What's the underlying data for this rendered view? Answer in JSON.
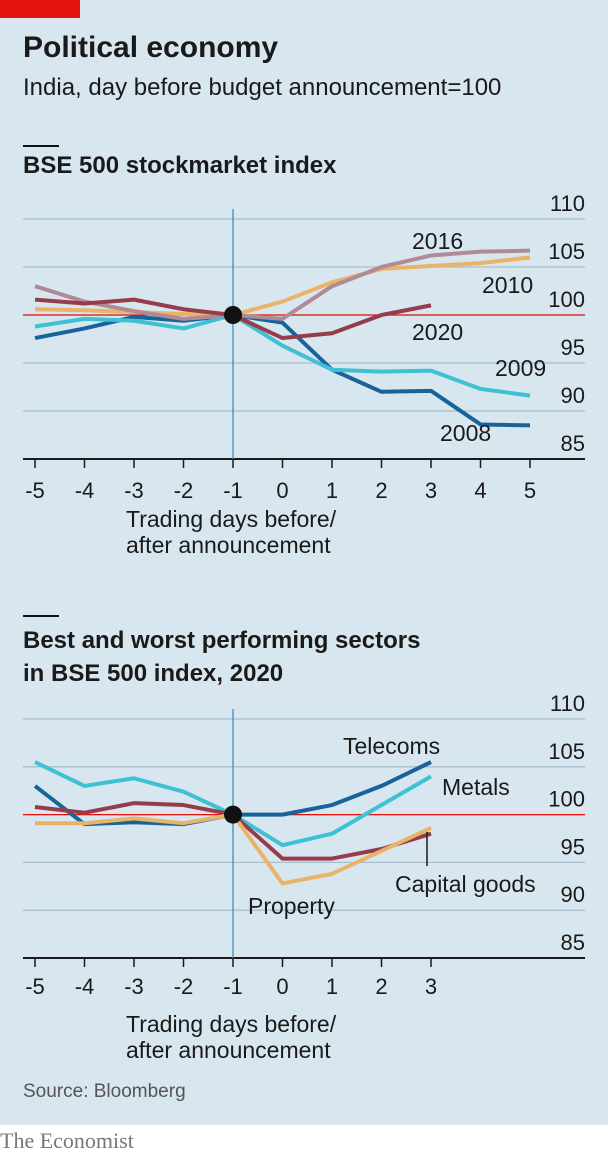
{
  "header": {
    "title": "Political economy",
    "subtitle": "India, day before budget announcement=100"
  },
  "chart_data": [
    {
      "type": "line",
      "title": [
        "BSE 500 stockmarket index"
      ],
      "x": [
        -5,
        -4,
        -3,
        -2,
        -1,
        0,
        1,
        2,
        3,
        4,
        5
      ],
      "xlim": [
        -5,
        5
      ],
      "xticks": [
        -5,
        -4,
        -3,
        -2,
        -1,
        0,
        1,
        2,
        3,
        4,
        5
      ],
      "ylim": [
        85,
        110
      ],
      "yticks": [
        85,
        90,
        95,
        100,
        105,
        110
      ],
      "xlabel": [
        "Trading days before/",
        "after announcement"
      ],
      "reference": 100,
      "grid": true,
      "series": [
        {
          "name": "2008",
          "color": "#17649a",
          "values": [
            97.6,
            98.6,
            99.8,
            99.4,
            100,
            99.2,
            94.3,
            92,
            92.1,
            88.6,
            88.5
          ]
        },
        {
          "name": "2009",
          "color": "#3ec1d3",
          "values": [
            98.8,
            99.6,
            99.4,
            98.6,
            100,
            96.8,
            94.3,
            94.1,
            94.2,
            92.3,
            91.6
          ]
        },
        {
          "name": "2010",
          "color": "#e9b468",
          "values": [
            100.6,
            100.5,
            100.3,
            100.1,
            100,
            101.4,
            103.4,
            104.8,
            105.1,
            105.4,
            106
          ]
        },
        {
          "name": "2016",
          "color": "#b08a96",
          "values": [
            103,
            101.4,
            100.4,
            99.6,
            100,
            99.6,
            103,
            105,
            106.2,
            106.6,
            106.7
          ]
        },
        {
          "name": "2020",
          "color": "#963c4c",
          "values": [
            101.6,
            101.2,
            101.6,
            100.6,
            100,
            97.6,
            98.1,
            100,
            101,
            null,
            null
          ]
        }
      ]
    },
    {
      "type": "line",
      "title": [
        "Best and worst performing sectors",
        "in BSE 500 index, 2020"
      ],
      "x": [
        -5,
        -4,
        -3,
        -2,
        -1,
        0,
        1,
        2,
        3
      ],
      "xlim": [
        -5,
        3
      ],
      "xticks": [
        -5,
        -4,
        -3,
        -2,
        -1,
        0,
        1,
        2,
        3
      ],
      "ylim": [
        85,
        110
      ],
      "yticks": [
        85,
        90,
        95,
        100,
        105,
        110
      ],
      "xlabel": [
        "Trading days before/",
        "after announcement"
      ],
      "reference": 100,
      "grid": true,
      "series": [
        {
          "name": "Telecoms",
          "color": "#17649a",
          "values": [
            103,
            99,
            99.2,
            99,
            100,
            100,
            101,
            103,
            105.5
          ]
        },
        {
          "name": "Metals",
          "color": "#3ec1d3",
          "values": [
            105.5,
            103,
            103.8,
            102.4,
            100,
            96.8,
            98,
            101,
            104
          ]
        },
        {
          "name": "Capital goods",
          "color": "#963c4c",
          "values": [
            100.8,
            100.2,
            101.2,
            101,
            100,
            95.4,
            95.4,
            96.4,
            98
          ]
        },
        {
          "name": "Property",
          "color": "#e9b468",
          "values": [
            99.1,
            99.1,
            99.6,
            99.1,
            100,
            92.8,
            93.8,
            96.2,
            98.6
          ]
        }
      ]
    }
  ],
  "footer": {
    "source": "Source: Bloomberg",
    "brand": "The Economist"
  }
}
